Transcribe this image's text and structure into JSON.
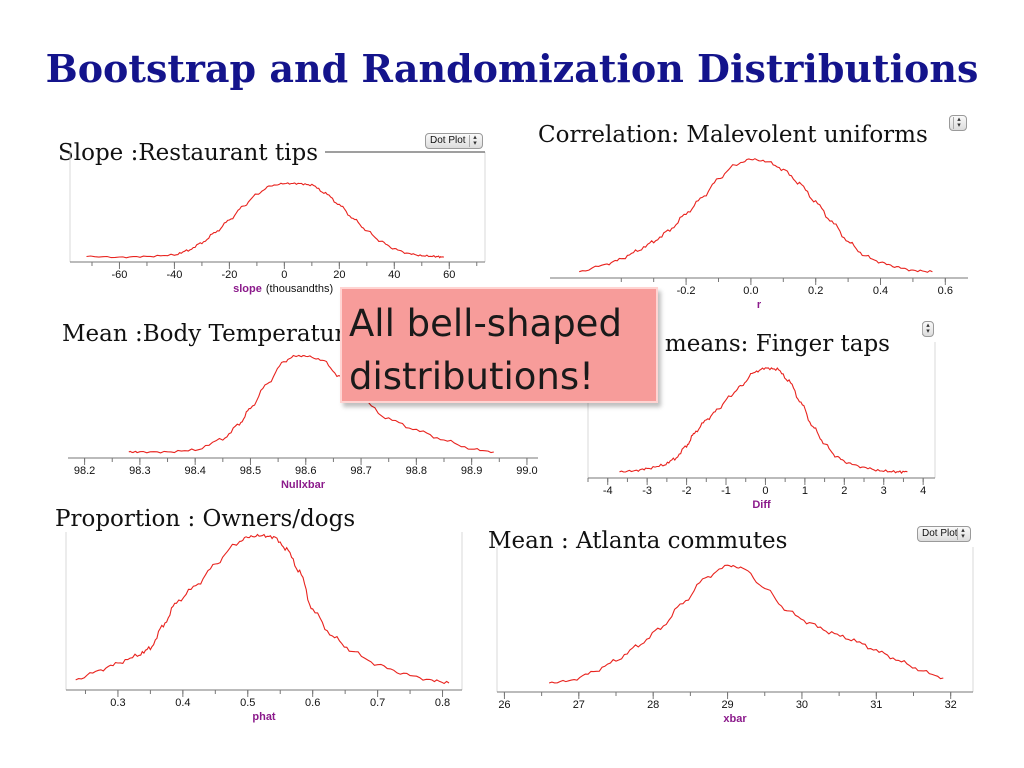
{
  "slide": {
    "title": "Bootstrap and Randomization Distributions",
    "callout": "All bell-shaped\ndistributions!",
    "dropdown_label": "Dot Plot"
  },
  "colors": {
    "title": "#14148c",
    "curve": "#e8231e",
    "axis": "#777777",
    "label_purple": "#8b1a8b",
    "label_green": "#2a8a2a",
    "callout_bg": "#f79c9a"
  },
  "icons": {
    "dropdown_arrow": "chevron-updown-icon"
  },
  "chart_data": [
    {
      "id": "slope",
      "type": "line",
      "title": "Slope :Restaurant tips",
      "xlabel": "slope",
      "xlabel_suffix": "(thousandths)",
      "xticks": [
        "-60",
        "-40",
        "-20",
        "0",
        "20",
        "40",
        "60"
      ],
      "xlim": [
        -78,
        73
      ],
      "ylim": [
        0,
        1
      ],
      "x": [
        -72,
        -60,
        -50,
        -40,
        -35,
        -30,
        -25,
        -20,
        -15,
        -10,
        -5,
        0,
        5,
        10,
        15,
        20,
        25,
        30,
        35,
        40,
        45,
        50,
        55,
        58
      ],
      "y": [
        0.02,
        0.01,
        0.02,
        0.04,
        0.1,
        0.2,
        0.34,
        0.5,
        0.68,
        0.84,
        0.95,
        0.98,
        0.98,
        0.96,
        0.85,
        0.7,
        0.52,
        0.36,
        0.22,
        0.12,
        0.06,
        0.03,
        0.02,
        0.01
      ],
      "has_dropdown": true
    },
    {
      "id": "correlation",
      "type": "line",
      "title": "Correlation: Malevolent uniforms",
      "xlabel": "r",
      "xticks": [
        "-0.2",
        "0.0",
        "0.2",
        "0.4",
        "0.6"
      ],
      "xlim": [
        -0.62,
        0.67
      ],
      "ylim": [
        0,
        1
      ],
      "x": [
        -0.53,
        -0.45,
        -0.4,
        -0.35,
        -0.3,
        -0.25,
        -0.2,
        -0.15,
        -0.1,
        -0.05,
        0,
        0.05,
        0.1,
        0.15,
        0.2,
        0.25,
        0.3,
        0.35,
        0.4,
        0.45,
        0.5,
        0.56
      ],
      "y": [
        0.02,
        0.08,
        0.13,
        0.2,
        0.28,
        0.38,
        0.52,
        0.66,
        0.82,
        0.94,
        0.99,
        0.97,
        0.9,
        0.78,
        0.62,
        0.45,
        0.28,
        0.16,
        0.1,
        0.06,
        0.03,
        0.02
      ],
      "has_dropdown": true
    },
    {
      "id": "temperature",
      "type": "line",
      "title": "Mean :Body Temperature",
      "xlabel": "Nullxbar",
      "xticks": [
        "98.2",
        "98.3",
        "98.4",
        "98.5",
        "98.6",
        "98.7",
        "98.8",
        "98.9",
        "99.0"
      ],
      "xlim": [
        98.17,
        99.02
      ],
      "ylim": [
        0,
        1
      ],
      "x": [
        98.28,
        98.3,
        98.35,
        98.4,
        98.45,
        98.48,
        98.5,
        98.53,
        98.56,
        98.58,
        98.6,
        98.63,
        98.66,
        98.7,
        98.75,
        98.8,
        98.85,
        98.9,
        98.94
      ],
      "y": [
        0.02,
        0.02,
        0.02,
        0.04,
        0.15,
        0.3,
        0.46,
        0.7,
        0.92,
        0.98,
        0.98,
        0.94,
        0.78,
        0.55,
        0.35,
        0.24,
        0.14,
        0.05,
        0.02
      ],
      "has_dropdown": false
    },
    {
      "id": "finger",
      "type": "line",
      "title": "Diff in means: Finger taps",
      "xlabel": "Diff",
      "xticks": [
        "-4",
        "-3",
        "-2",
        "-1",
        "0",
        "1",
        "2",
        "3",
        "4"
      ],
      "xlim": [
        -4.5,
        4.3
      ],
      "ylim": [
        0,
        1
      ],
      "x": [
        -3.7,
        -3.3,
        -3,
        -2.6,
        -2.3,
        -2,
        -1.8,
        -1.5,
        -1.2,
        -0.9,
        -0.6,
        -0.3,
        0,
        0.3,
        0.6,
        0.9,
        1.2,
        1.5,
        1.8,
        2.1,
        2.5,
        2.9,
        3.3,
        3.6
      ],
      "y": [
        0.02,
        0.03,
        0.05,
        0.08,
        0.14,
        0.26,
        0.38,
        0.5,
        0.6,
        0.72,
        0.82,
        0.94,
        0.98,
        0.97,
        0.86,
        0.66,
        0.44,
        0.28,
        0.16,
        0.1,
        0.06,
        0.03,
        0.02,
        0.02
      ],
      "has_dropdown": true
    },
    {
      "id": "proportion",
      "type": "line",
      "title": "Proportion : Owners/dogs",
      "xlabel": "phat",
      "xticks": [
        "0.3",
        "0.4",
        "0.5",
        "0.6",
        "0.7",
        "0.8"
      ],
      "xlim": [
        0.22,
        0.83
      ],
      "ylim": [
        0,
        1
      ],
      "x": [
        0.235,
        0.27,
        0.3,
        0.33,
        0.35,
        0.37,
        0.39,
        0.42,
        0.45,
        0.48,
        0.5,
        0.52,
        0.54,
        0.56,
        0.58,
        0.6,
        0.63,
        0.66,
        0.7,
        0.74,
        0.78,
        0.81
      ],
      "y": [
        0.04,
        0.1,
        0.15,
        0.2,
        0.25,
        0.4,
        0.55,
        0.66,
        0.8,
        0.93,
        0.98,
        0.99,
        0.98,
        0.9,
        0.75,
        0.5,
        0.33,
        0.23,
        0.14,
        0.08,
        0.04,
        0.02
      ],
      "has_dropdown": false
    },
    {
      "id": "commute",
      "type": "line",
      "title": "Mean : Atlanta commutes",
      "xlabel": "xbar",
      "xticks": [
        "26",
        "27",
        "28",
        "29",
        "30",
        "31",
        "32"
      ],
      "xlim": [
        25.9,
        32.3
      ],
      "ylim": [
        0,
        1
      ],
      "x": [
        26.6,
        26.9,
        27.2,
        27.5,
        27.8,
        28.1,
        28.4,
        28.7,
        29,
        29.2,
        29.5,
        29.8,
        30.1,
        30.4,
        30.7,
        31,
        31.3,
        31.6,
        31.9
      ],
      "y": [
        0.04,
        0.06,
        0.13,
        0.22,
        0.34,
        0.48,
        0.68,
        0.88,
        0.98,
        0.96,
        0.8,
        0.62,
        0.52,
        0.44,
        0.38,
        0.3,
        0.22,
        0.14,
        0.08
      ],
      "has_dropdown": true
    }
  ]
}
